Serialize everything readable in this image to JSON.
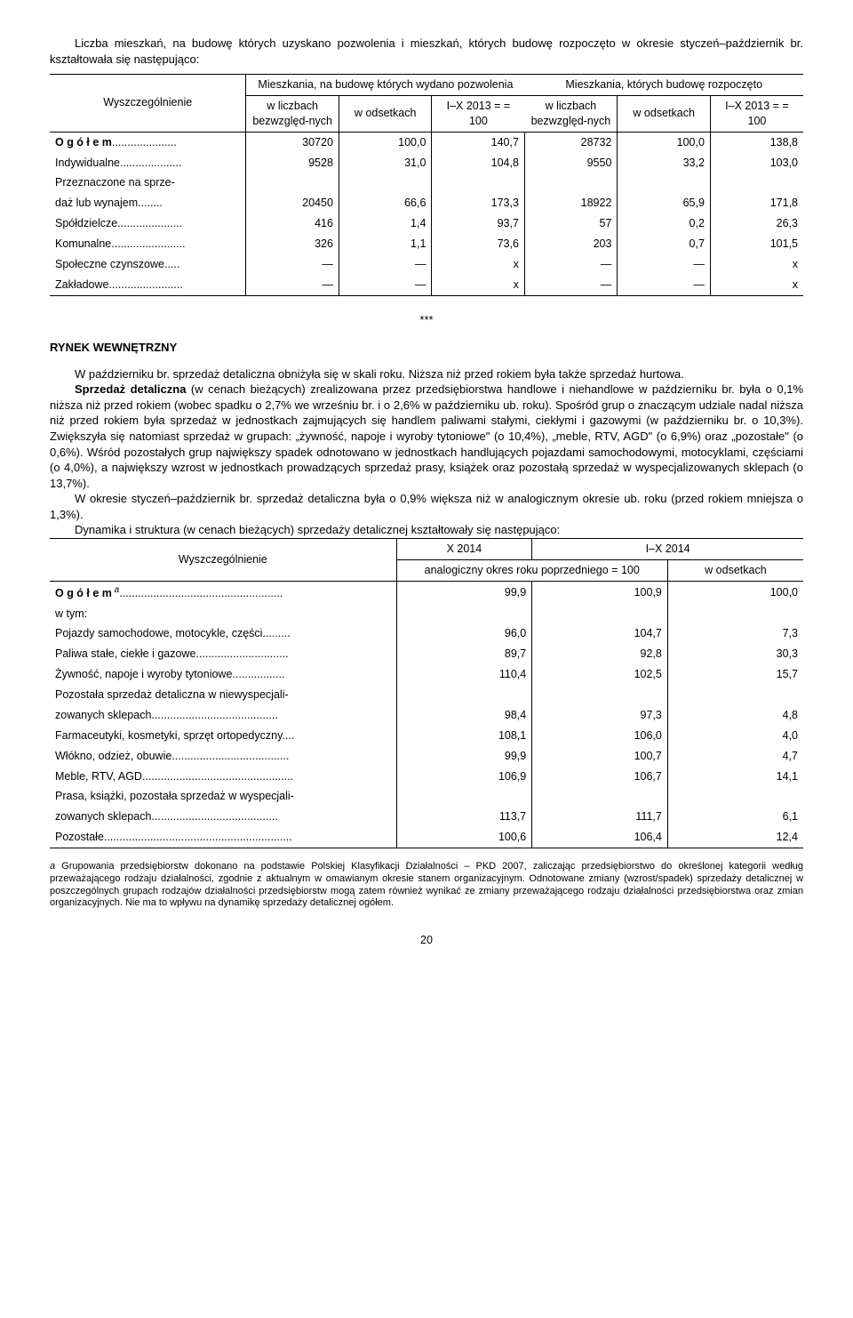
{
  "intro1": "Liczba mieszkań, na budowę których uzyskano pozwolenia i mieszkań, których budowę rozpoczęto w okresie styczeń–październik br. kształtowała się następująco:",
  "t1": {
    "header": {
      "col_label": "Wyszczególnienie",
      "group1": "Mieszkania, na budowę których wydano pozwolenia",
      "group2": "Mieszkania, których budowę rozpoczęto",
      "sub_abs": "w liczbach bezwzględ-nych",
      "sub_pct": "w odsetkach",
      "sub_idx": "I–X 2013 = = 100"
    },
    "rows": [
      {
        "label": "O g ó ł e m",
        "a": "30720",
        "b": "100,0",
        "c": "140,7",
        "d": "28732",
        "e": "100,0",
        "f": "138,8",
        "bold": true,
        "dots": "....................."
      },
      {
        "label": "Indywidualne",
        "a": "9528",
        "b": "31,0",
        "c": "104,8",
        "d": "9550",
        "e": "33,2",
        "f": "103,0",
        "dots": "...................."
      },
      {
        "label": "Przeznaczone na sprze-",
        "a": "",
        "b": "",
        "c": "",
        "d": "",
        "e": "",
        "f": "",
        "nodots": true
      },
      {
        "label": "    daż lub wynajem",
        "a": "20450",
        "b": "66,6",
        "c": "173,3",
        "d": "18922",
        "e": "65,9",
        "f": "171,8",
        "dots": "........"
      },
      {
        "label": "Spółdzielcze",
        "a": "416",
        "b": "1,4",
        "c": "93,7",
        "d": "57",
        "e": "0,2",
        "f": "26,3",
        "dots": "....................."
      },
      {
        "label": "Komunalne",
        "a": "326",
        "b": "1,1",
        "c": "73,6",
        "d": "203",
        "e": "0,7",
        "f": "101,5",
        "dots": "........................"
      },
      {
        "label": "Społeczne czynszowe",
        "a": "—",
        "b": "—",
        "c": "x",
        "d": "—",
        "e": "—",
        "f": "x",
        "dots": "....."
      },
      {
        "label": "Zakładowe",
        "a": "—",
        "b": "—",
        "c": "x",
        "d": "—",
        "e": "—",
        "f": "x",
        "dots": "........................"
      }
    ]
  },
  "stars": "***",
  "section2": "RYNEK  WEWNĘTRZNY",
  "body2": [
    "W październiku br. sprzedaż detaliczna obniżyła się w skali roku. Niższa niż przed rokiem była także sprzedaż hurtowa.",
    "Sprzedaż detaliczna (w cenach bieżących) zrealizowana przez przedsiębiorstwa handlowe i niehandlowe w październiku br. była o 0,1% niższa niż przed rokiem (wobec spadku o 2,7% we wrześniu br. i o 2,6% w październiku ub. roku). Spośród grup o znaczącym udziale nadal niższa niż przed rokiem była sprzedaż w jednostkach zajmujących się handlem paliwami stałymi, ciekłymi i gazowymi (w październiku br. o 10,3%). Zwiększyła się natomiast sprzedaż w grupach: „żywność, napoje i wyroby tytoniowe\" (o 10,4%), „meble, RTV, AGD\" (o 6,9%) oraz „pozostałe\" (o 0,6%). Wśród pozostałych grup największy spadek odnotowano w jednostkach handlujących pojazdami samochodowymi, motocyklami, częściami (o 4,0%), a największy wzrost w jednostkach prowadzących sprzedaż prasy, książek oraz pozostałą sprzedaż w wyspecjalizowanych sklepach (o 13,7%).",
    "W okresie styczeń–październik br. sprzedaż detaliczna była o 0,9% większa niż w analogicznym okresie ub. roku (przed rokiem mniejsza o 1,3%).",
    "Dynamika i struktura (w cenach bieżących) sprzedaży detalicznej kształtowały się następująco:"
  ],
  "t2": {
    "header": {
      "col_label": "Wyszczególnienie",
      "c1": "X 2014",
      "c2": "I–X 2014",
      "sub_a": "analogiczny okres roku poprzedniego = 100",
      "sub_b": "w odsetkach"
    },
    "rows": [
      {
        "label": "O g ó ł e m",
        "sup": "a",
        "a": "99,9",
        "b": "100,9",
        "c": "100,0",
        "bold": true,
        "dots": "....................................................."
      },
      {
        "label": "    w tym:",
        "a": "",
        "b": "",
        "c": "",
        "nodots": true
      },
      {
        "label": "Pojazdy samochodowe, motocykle, części",
        "a": "96,0",
        "b": "104,7",
        "c": "7,3",
        "dots": "........."
      },
      {
        "label": "Paliwa stałe, ciekłe i gazowe",
        "a": "89,7",
        "b": "92,8",
        "c": "30,3",
        "dots": ".............................."
      },
      {
        "label": "Żywność, napoje i wyroby tytoniowe",
        "a": "110,4",
        "b": "102,5",
        "c": "15,7",
        "dots": "................."
      },
      {
        "label": "Pozostała sprzedaż detaliczna w niewyspecjali-",
        "a": "",
        "b": "",
        "c": "",
        "nodots": true
      },
      {
        "label": "    zowanych sklepach",
        "a": "98,4",
        "b": "97,3",
        "c": "4,8",
        "dots": "........................................."
      },
      {
        "label": "Farmaceutyki, kosmetyki, sprzęt ortopedyczny",
        "a": "108,1",
        "b": "106,0",
        "c": "4,0",
        "dots": "...."
      },
      {
        "label": "Włókno, odzież, obuwie",
        "a": "99,9",
        "b": "100,7",
        "c": "4,7",
        "dots": "......................................"
      },
      {
        "label": "Meble, RTV, AGD",
        "a": "106,9",
        "b": "106,7",
        "c": "14,1",
        "dots": "................................................."
      },
      {
        "label": "Prasa, książki, pozostała sprzedaż w wyspecjali-",
        "a": "",
        "b": "",
        "c": "",
        "nodots": true
      },
      {
        "label": "    zowanych sklepach",
        "a": "113,7",
        "b": "111,7",
        "c": "6,1",
        "dots": "........................................."
      },
      {
        "label": "Pozostałe",
        "a": "100,6",
        "b": "106,4",
        "c": "12,4",
        "dots": "............................................................."
      }
    ]
  },
  "footnote_label": "a",
  "footnote": " Grupowania przedsiębiorstw dokonano na podstawie Polskiej Klasyfikacji Działalności – PKD 2007, zaliczając przedsiębiorstwo do określonej kategorii według przeważającego rodzaju działalności, zgodnie z aktualnym w omawianym okresie stanem organizacyjnym. Odnotowane zmiany (wzrost/spadek) sprzedaży detalicznej w poszczególnych grupach rodzajów działalności przedsiębiorstw mogą zatem również wynikać ze zmiany przeważającego rodzaju działalności przedsiębiorstwa oraz zmian organizacyjnych. Nie ma to wpływu na dynamikę sprzedaży detalicznej ogółem.",
  "pagenum": "20"
}
